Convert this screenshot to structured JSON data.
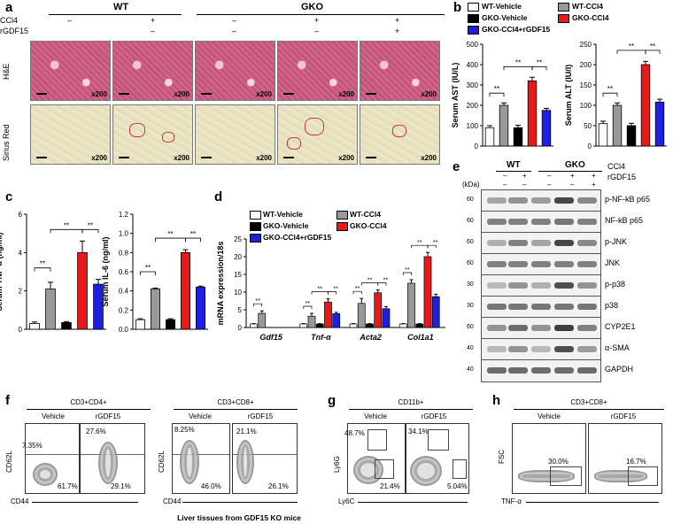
{
  "panel_a": {
    "letter": "a",
    "group_wt": "WT",
    "group_gko": "GKO",
    "row_ccl4": "CCl4",
    "row_rgdf15": "rGDF15",
    "treatments": [
      {
        "ccl4": "–",
        "rgdf15": ""
      },
      {
        "ccl4": "+",
        "rgdf15": "–"
      },
      {
        "ccl4": "–",
        "rgdf15": "–"
      },
      {
        "ccl4": "+",
        "rgdf15": "–"
      },
      {
        "ccl4": "+",
        "rgdf15": "+"
      }
    ],
    "row_he": "H&E",
    "row_sr": "Sirius Red",
    "mag": "x200"
  },
  "colors": {
    "wt_vehicle": "#ffffff",
    "wt_ccl4": "#999999",
    "gko_vehicle": "#000000",
    "gko_ccl4": "#e8191b",
    "gko_ccl4_rgdf15": "#1f1fe0"
  },
  "legend": {
    "wt_vehicle": "WT-Vehicle",
    "wt_ccl4": "WT-CCl4",
    "gko_vehicle": "GKO-Vehicle",
    "gko_ccl4": "GKO-CCl4",
    "gko_ccl4_rgdf15": "GKO-CCl4+rGDF15"
  },
  "sig": "**",
  "panel_b": {
    "letter": "b"
  },
  "panel_c": {
    "letter": "c"
  },
  "panel_d": {
    "letter": "d"
  },
  "panel_e": {
    "letter": "e",
    "group_wt": "WT",
    "group_gko": "GKO",
    "ccl4": "CCl4",
    "rgdf15": "rGDF15",
    "kda_label": "(kDa)",
    "lane_ccl4": [
      "–",
      "+",
      "–",
      "+",
      "+"
    ],
    "lane_rgdf15": [
      "–",
      "–",
      "–",
      "–",
      "+"
    ],
    "blots": [
      {
        "label": "p-NF-kB p65",
        "kda": "60"
      },
      {
        "label": "NF-kB p65",
        "kda": "60"
      },
      {
        "label": "p-JNK",
        "kda": "60"
      },
      {
        "label": "JNK",
        "kda": "60"
      },
      {
        "label": "p-p38",
        "kda": "30"
      },
      {
        "label": "p38",
        "kda": "30"
      },
      {
        "label": "CYP2E1",
        "kda": "60"
      },
      {
        "label": "α-SMA",
        "kda": "40"
      },
      {
        "label": "GAPDH",
        "kda": "40"
      }
    ]
  },
  "panel_f": {
    "letter": "f",
    "plots": [
      {
        "title": "CD3+CD4+",
        "vehicle": "Vehicle",
        "treated": "rGDF15",
        "y_label": "CD62L",
        "x_label": "CD44",
        "veh_upper": "7.35%",
        "veh_lower": "61.7%",
        "trt_upper": "27.6%",
        "trt_lower": "29.1%"
      },
      {
        "title": "CD3+CD8+",
        "vehicle": "Vehicle",
        "treated": "rGDF15",
        "y_label": "CD62L",
        "x_label": "CD44",
        "veh_upper": "8.25%",
        "veh_lower": "46.0%",
        "trt_upper": "21.1%",
        "trt_lower": "26.1%"
      }
    ]
  },
  "panel_g": {
    "letter": "g",
    "title": "CD11b+",
    "vehicle": "Vehicle",
    "treated": "rGDF15",
    "y_label": "Ly6G",
    "x_label": "Ly6C",
    "veh_upper": "48.7%",
    "veh_lower": "21.4%",
    "trt_upper": "34.1%",
    "trt_lower": "5.04%"
  },
  "panel_h": {
    "letter": "h",
    "title": "CD3+CD8+",
    "vehicle": "Vehicle",
    "treated": "rGDF15",
    "y_label": "FSC",
    "x_label": "TNF-α",
    "veh_val": "30.0%",
    "trt_val": "16.7%"
  },
  "footer": "Liver tissues from GDF15 KO mice",
  "chart_data": [
    {
      "id": "b_ast",
      "type": "bar",
      "panel": "b",
      "ylabel": "Serum AST (IU/L)",
      "ylim": [
        0,
        500
      ],
      "yticks": [
        0,
        100,
        200,
        300,
        400,
        500
      ],
      "categories": [
        "WT-Vehicle",
        "WT-CCl4",
        "GKO-Vehicle",
        "GKO-CCl4",
        "GKO-CCl4+rGDF15"
      ],
      "values": [
        90,
        200,
        90,
        320,
        175
      ],
      "errors": [
        10,
        12,
        12,
        18,
        10
      ]
    },
    {
      "id": "b_alt",
      "type": "bar",
      "panel": "b",
      "ylabel": "Serum ALT (IU/l)",
      "ylim": [
        0,
        250
      ],
      "yticks": [
        0,
        50,
        100,
        150,
        200,
        250
      ],
      "categories": [
        "WT-Vehicle",
        "WT-CCl4",
        "GKO-Vehicle",
        "GKO-CCl4",
        "GKO-CCl4+rGDF15"
      ],
      "values": [
        55,
        100,
        50,
        200,
        108
      ],
      "errors": [
        6,
        6,
        6,
        8,
        7
      ]
    },
    {
      "id": "c_tnf",
      "type": "bar",
      "panel": "c",
      "ylabel": "Serum TNF-α (ng/ml)",
      "ylim": [
        0,
        6
      ],
      "yticks": [
        0,
        2,
        4,
        6
      ],
      "categories": [
        "WT-Vehicle",
        "WT-CCl4",
        "GKO-Vehicle",
        "GKO-CCl4",
        "GKO-CCl4+rGDF15"
      ],
      "values": [
        0.3,
        2.1,
        0.35,
        4.0,
        2.35
      ],
      "errors": [
        0.08,
        0.35,
        0.05,
        0.6,
        0.25
      ]
    },
    {
      "id": "c_il6",
      "type": "bar",
      "panel": "c",
      "ylabel": "Serum IL-6 (ng/ml)",
      "ylim": [
        0,
        1.2
      ],
      "yticks": [
        0.0,
        0.2,
        0.4,
        0.6,
        0.8,
        1.0,
        1.2
      ],
      "categories": [
        "WT-Vehicle",
        "WT-CCl4",
        "GKO-Vehicle",
        "GKO-CCl4",
        "GKO-CCl4+rGDF15"
      ],
      "values": [
        0.1,
        0.42,
        0.1,
        0.8,
        0.44
      ],
      "errors": [
        0.01,
        0.01,
        0.01,
        0.03,
        0.01
      ]
    },
    {
      "id": "d_mrna",
      "type": "bar",
      "panel": "d",
      "ylabel": "mRNA expression/18s",
      "ylim": [
        0,
        25
      ],
      "yticks": [
        0,
        5,
        10,
        15,
        20,
        25
      ],
      "categories": [
        "Gdf15",
        "Tnf-α",
        "Acta2",
        "Col1a1"
      ],
      "series": [
        {
          "name": "WT-Vehicle",
          "values": [
            1,
            1,
            1,
            1
          ],
          "errors": [
            0.1,
            0.1,
            0.1,
            0.1
          ]
        },
        {
          "name": "WT-CCl4",
          "values": [
            4,
            3.2,
            6.8,
            12.5
          ],
          "errors": [
            0.7,
            0.8,
            1.4,
            1.0
          ]
        },
        {
          "name": "GKO-Vehicle",
          "values": [
            0,
            1,
            1,
            1
          ],
          "errors": [
            0,
            0.1,
            0.1,
            0.1
          ]
        },
        {
          "name": "GKO-CCl4",
          "values": [
            0,
            7.2,
            9.8,
            20
          ],
          "errors": [
            0,
            0.9,
            0.8,
            1.2
          ]
        },
        {
          "name": "GKO-CCl4+rGDF15",
          "values": [
            0,
            3.9,
            5.3,
            8.7
          ],
          "errors": [
            0,
            0.4,
            0.6,
            0.7
          ]
        }
      ]
    }
  ]
}
